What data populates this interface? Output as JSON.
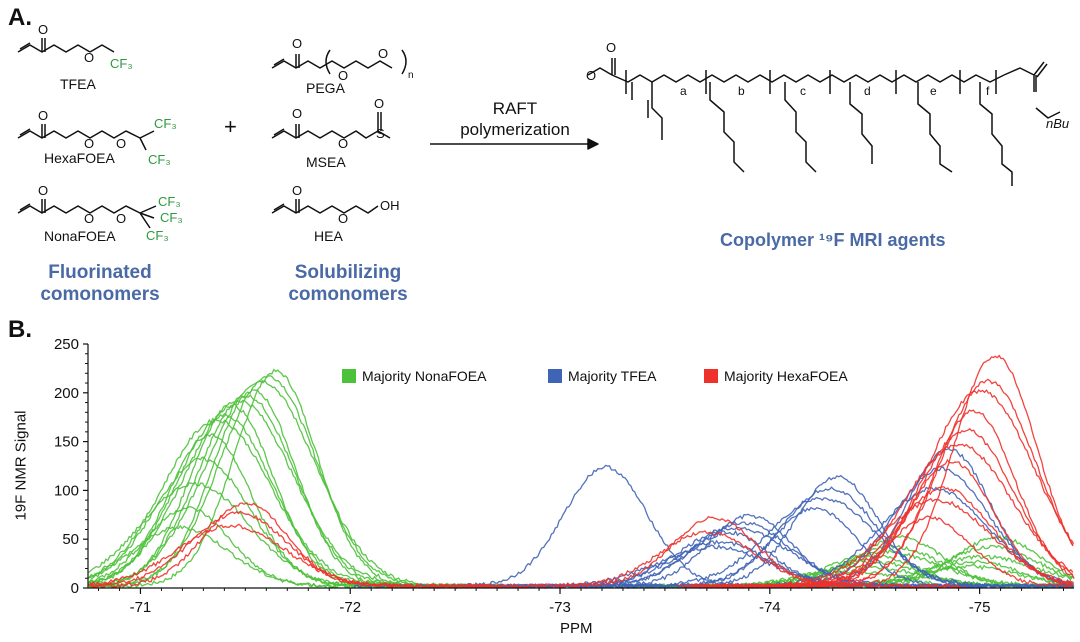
{
  "panel_a": {
    "label": "A.",
    "fluorinated": {
      "title_line1": "Fluorinated",
      "title_line2": "comonomers",
      "monomers": [
        "TFEA",
        "HexaFOEA",
        "NonaFOEA"
      ]
    },
    "plus": "+",
    "solubilizing": {
      "title_line1": "Solubilizing",
      "title_line2": "comonomers",
      "monomers": [
        "PEGA",
        "MSEA",
        "HEA"
      ]
    },
    "reaction": {
      "line1": "RAFT",
      "line2": "polymerization"
    },
    "product_title": "Copolymer ¹⁹F MRI agents",
    "repeat_letters": [
      "a",
      "b",
      "c",
      "d",
      "e",
      "f"
    ],
    "end_group": "nBu",
    "peg_subscript": "n"
  },
  "panel_b": {
    "label": "B.",
    "legend": [
      {
        "label": "Majority NonaFOEA",
        "color": "#4cc13a"
      },
      {
        "label": "Majority TFEA",
        "color": "#3f63b5"
      },
      {
        "label": "Majority HexaFOEA",
        "color": "#f0302a"
      }
    ]
  },
  "chart_data": {
    "type": "line",
    "xlabel": "PPM",
    "ylabel": "19F NMR Signal",
    "xlim": [
      -70.75,
      -75.45
    ],
    "ylim": [
      0,
      250
    ],
    "x_ticks": [
      -71,
      -72,
      -73,
      -74,
      -75
    ],
    "x_tick_labels": [
      "-71",
      "-72",
      "-73",
      "-74",
      "-75"
    ],
    "y_ticks": [
      0,
      50,
      100,
      150,
      200,
      250
    ],
    "y_tick_labels": [
      "0",
      "50",
      "100",
      "150",
      "200",
      "250"
    ],
    "legend_position": "top-center",
    "series": [
      {
        "name": "Majority NonaFOEA",
        "color": "#4cc13a",
        "peaks": [
          {
            "center": -71.4,
            "heights": [
              220,
              215,
              210,
              200,
              195,
              190,
              185,
              175,
              170,
              155,
              130,
              105,
              80,
              60
            ]
          },
          {
            "center": -74.5,
            "heights": [
              50,
              40,
              35,
              30,
              25,
              20,
              15
            ]
          },
          {
            "center": -75.0,
            "heights": [
              50,
              40,
              30,
              25,
              20
            ]
          }
        ]
      },
      {
        "name": "Majority TFEA",
        "color": "#3f63b5",
        "peaks": [
          {
            "center": -73.2,
            "heights": [
              122
            ]
          },
          {
            "center": -73.8,
            "heights": [
              72,
              65,
              60,
              55,
              45,
              40
            ]
          },
          {
            "center": -74.25,
            "heights": [
              112,
              100,
              90,
              80
            ]
          },
          {
            "center": -74.8,
            "heights": [
              140,
              120,
              100
            ]
          }
        ]
      },
      {
        "name": "Majority HexaFOEA",
        "color": "#f0302a",
        "peaks": [
          {
            "center": -71.45,
            "heights": [
              85,
              75,
              62
            ]
          },
          {
            "center": -73.7,
            "heights": [
              70,
              55
            ]
          },
          {
            "center": -74.9,
            "heights": [
              236,
              210,
              200,
              180,
              160,
              145,
              128,
              100,
              88,
              70
            ]
          }
        ]
      }
    ]
  }
}
